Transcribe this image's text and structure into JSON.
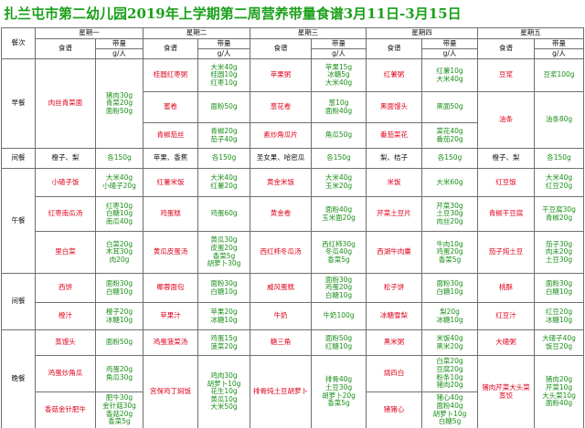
{
  "title": "扎兰屯市第二幼儿园2019年上学期第二周营养带量食谱3月11日-3月15日",
  "header": {
    "meal_col": "餐次",
    "recipe_label": "食谱",
    "amount_label": "带量",
    "unit_label": "g/人",
    "days": [
      "星期一",
      "星期二",
      "星期三",
      "星期四",
      "星期五"
    ]
  },
  "meals": {
    "breakfast": "早餐",
    "snack1": "间餐",
    "lunch": "午餐",
    "snack2": "间餐",
    "dinner": "晚餐"
  },
  "colors": {
    "title": "#1aa01a",
    "dish": "#e0001a",
    "ingredient": "#1a8f1a"
  },
  "mon": {
    "b1": {
      "dish": "肉丝青菜面",
      "amt": [
        "猪肉30g",
        "青菜20g",
        "面粉50g"
      ]
    },
    "s1": {
      "dish": "橙子、梨",
      "amt": [
        "各150g"
      ]
    },
    "l1": {
      "dish": "小碴子饭",
      "amt": [
        "大米40g",
        "小碴子20g"
      ]
    },
    "l2": {
      "dish": "红枣南瓜汤",
      "amt": [
        "红枣10g",
        "白糖10g",
        "南瓜40g"
      ]
    },
    "l3": {
      "dish": "里白菜",
      "amt": [
        "白菜20g",
        "木耳30g",
        "肉20g"
      ]
    },
    "s2a": {
      "dish": "西饼",
      "amt": [
        "面粉30g",
        "白糖10g"
      ]
    },
    "s2b": {
      "dish": "橙汁",
      "amt": [
        "橙子20g",
        "冰糖10g"
      ]
    },
    "d1": {
      "dish": "蒸馒头",
      "amt": [
        "面粉50g"
      ]
    },
    "d2": {
      "dish": "鸡蛋炒角瓜",
      "amt": [
        "鸡蛋20g",
        "角瓜30g"
      ]
    },
    "d3": {
      "dish": "香菇金针肥牛",
      "amt": [
        "肥牛30g",
        "金针菇30g",
        "香菇20g",
        "香菜5g"
      ]
    }
  },
  "tue": {
    "b1": {
      "dish": "桂圆红枣粥",
      "amt": [
        "大米40g",
        "桂圆10g",
        "红枣10g"
      ]
    },
    "b2": {
      "dish": "蜜卷",
      "amt": [
        "面粉50g"
      ]
    },
    "b3": {
      "dish": "青椒茄丝",
      "amt": [
        "青椒20g",
        "茄子40g"
      ]
    },
    "s1": {
      "dish": "苹果、香蕉",
      "amt": [
        "各150g"
      ]
    },
    "l1": {
      "dish": "红薯米饭",
      "amt": [
        "大米40g",
        "红薯20g"
      ]
    },
    "l2": {
      "dish": "鸡蛋糕",
      "amt": [
        "鸡蛋60g"
      ]
    },
    "l3": {
      "dish": "黄瓜皮蛋汤",
      "amt": [
        "黄瓜30g",
        "皮蛋20g",
        "香菜5g",
        "胡萝卜30g"
      ]
    },
    "s2a": {
      "dish": "椰蓉面包",
      "amt": [
        "面粉30g",
        "白糖10g"
      ]
    },
    "s2b": {
      "dish": "苹果汁",
      "amt": [
        "苹果20g",
        "冰糖10g"
      ]
    },
    "d1": {
      "dish": "鸡蛋菠菜汤",
      "amt": [
        "鸡蛋15g",
        "菠菜20g"
      ]
    },
    "d2": {
      "dish": "宫保鸡丁焖饭",
      "amt": [
        "鸡肉30g",
        "胡萝卜10g",
        "花生10g",
        "黄瓜10g",
        "大米50g"
      ]
    }
  },
  "wed": {
    "b1": {
      "dish": "苹果粥",
      "amt": [
        "苹果15g",
        "冰糖5g",
        "大米40g"
      ]
    },
    "b2": {
      "dish": "葱花卷",
      "amt": [
        "葱10g",
        "面粉40g"
      ]
    },
    "b3": {
      "dish": "素炒角瓜片",
      "amt": [
        "角瓜50g"
      ]
    },
    "s1": {
      "dish": "圣女果、哈密瓜",
      "amt": [
        "各150g"
      ]
    },
    "l1": {
      "dish": "黄金米饭",
      "amt": [
        "大米40g",
        "玉米20g"
      ]
    },
    "l2": {
      "dish": "黄金卷",
      "amt": [
        "面粉40g",
        "玉米面20g"
      ]
    },
    "l3": {
      "dish": "西红柿冬瓜汤",
      "amt": [
        "西红柿30g",
        "冬瓜40g",
        "香菜5g"
      ]
    },
    "s2a": {
      "dish": "威风蛋糕",
      "amt": [
        "面粉30g",
        "鸡蛋20g",
        "白糖10g"
      ]
    },
    "s2b": {
      "dish": "牛奶",
      "amt": [
        "牛奶100g"
      ]
    },
    "d1": {
      "dish": "糖三角",
      "amt": [
        "面粉50g",
        "红糖10g"
      ]
    },
    "d2": {
      "dish": "排骨炖土豆胡萝卜",
      "amt": [
        "排骨40g",
        "土豆30g",
        "胡萝卜20g",
        "香菜5g"
      ]
    }
  },
  "thu": {
    "b1": {
      "dish": "红薯粥",
      "amt": [
        "红薯10g",
        "大米40g"
      ]
    },
    "b2": {
      "dish": "黑面馒头",
      "amt": [
        "黑面50g"
      ]
    },
    "b3": {
      "dish": "番茄菜花",
      "amt": [
        "菜花40g",
        "番茄20g"
      ]
    },
    "s1": {
      "dish": "梨、桔子",
      "amt": [
        "各150g"
      ]
    },
    "l1": {
      "dish": "米饭",
      "amt": [
        "大米60g"
      ]
    },
    "l2": {
      "dish": "芹菜土豆片",
      "amt": [
        "芹菜30g",
        "土豆30g",
        "肉丝20g"
      ]
    },
    "l3": {
      "dish": "西湖牛肉羹",
      "amt": [
        "牛肉10g",
        "鸡蛋20g",
        "香菜5g"
      ]
    },
    "s2a": {
      "dish": "松子饼",
      "amt": [
        "面粉30g",
        "白糖10g"
      ]
    },
    "s2b": {
      "dish": "冰糖雪梨",
      "amt": [
        "梨20g",
        "冰糖10g"
      ]
    },
    "d1": {
      "dish": "黑米粥",
      "amt": [
        "米饭40g",
        "黑米20g"
      ]
    },
    "d2": {
      "dish": "烧四白",
      "amt": [
        "白菜20g",
        "豆腐20g",
        "粉条10g",
        "猪肉20g"
      ]
    },
    "d3": {
      "dish": "猪猪心",
      "amt": [
        "猪心40g",
        "面粉40g",
        "胡萝卜10g",
        "白糖5g"
      ]
    }
  },
  "fri": {
    "b1": {
      "dish": "豆浆",
      "amt": [
        "豆浆100g"
      ]
    },
    "b2": {
      "dish": "油条",
      "amt": [
        "油条80g"
      ]
    },
    "s1": {
      "dish": "橙子、梨",
      "amt": [
        "各150g"
      ]
    },
    "l1": {
      "dish": "红豆饭",
      "amt": [
        "大米40g",
        "红豆20g"
      ]
    },
    "l2": {
      "dish": "青椒干豆腐",
      "amt": [
        "干豆腐30g",
        "青椒20g"
      ]
    },
    "l3": {
      "dish": "茄子炖土豆",
      "amt": [
        "茄子30g",
        "肉末20g",
        "土豆30g"
      ]
    },
    "s2a": {
      "dish": "桃酥",
      "amt": [
        "面粉30g",
        "白糖10g"
      ]
    },
    "s2b": {
      "dish": "红豆汁",
      "amt": [
        "红豆20g",
        "冰糖10g"
      ]
    },
    "d1": {
      "dish": "大碴粥",
      "amt": [
        "大碴子40g",
        "饭豆20g"
      ]
    },
    "d2": {
      "dish": "猪肉芹菜大头菜蒸饺",
      "amt": [
        "猪肉20g",
        "芹菜10g",
        "大头菜10g",
        "面粉40g"
      ]
    }
  }
}
